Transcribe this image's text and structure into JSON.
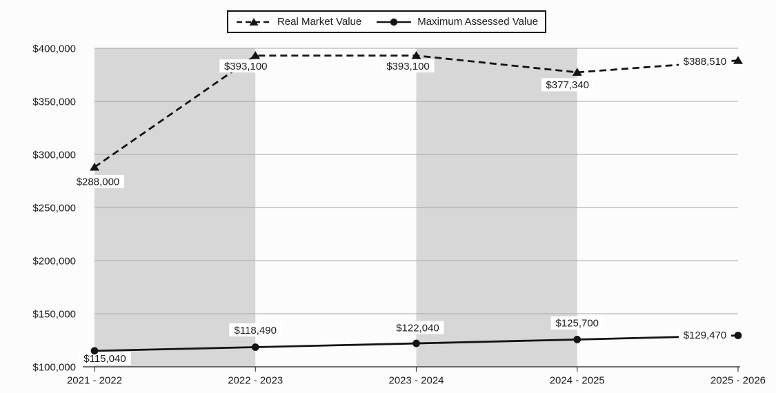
{
  "chart_data": {
    "type": "line",
    "title": "",
    "xlabel": "",
    "ylabel": "",
    "categories": [
      "2021 - 2022",
      "2022 - 2023",
      "2023 - 2024",
      "2024 - 2025",
      "2025 - 2026"
    ],
    "series": [
      {
        "name": "Real Market Value",
        "marker": "triangle",
        "line_style": "dashed",
        "values": [
          288000,
          393100,
          393100,
          377340,
          388510
        ],
        "data_labels": [
          "$288,000",
          "$393,100",
          "$393,100",
          "$377,340",
          "$388,510"
        ]
      },
      {
        "name": "Maximum Assessed Value",
        "marker": "circle",
        "line_style": "solid",
        "values": [
          115040,
          118490,
          122040,
          125700,
          129470
        ],
        "data_labels": [
          "$115,040",
          "$118,490",
          "$122,040",
          "$125,700",
          "$129,470"
        ]
      }
    ],
    "y_axis": {
      "min": 100000,
      "max": 400000,
      "step": 50000,
      "tick_labels": [
        "$100,000",
        "$150,000",
        "$200,000",
        "$250,000",
        "$300,000",
        "$350,000",
        "$400,000"
      ]
    },
    "x_axis": {
      "tick_labels": [
        "2021 - 2022",
        "2022 - 2023",
        "2023 - 2024",
        "2024 - 2025",
        "2025 - 2026"
      ]
    },
    "legend": {
      "position": "top-center",
      "entries": [
        "Real Market Value",
        "Maximum Assessed Value"
      ]
    },
    "grid": "horizontal",
    "plot_bands": {
      "intervals": [
        [
          0,
          1
        ],
        [
          2,
          3
        ]
      ],
      "color": "#d7d7d7"
    },
    "colors": {
      "line": "#141414",
      "gridline": "#a4a4a4",
      "axis": "#3f3f3f",
      "band": "#d7d7d7",
      "background": "#fcfcfc",
      "text": "#1c1c1c",
      "label_background": "#ffffff"
    }
  }
}
